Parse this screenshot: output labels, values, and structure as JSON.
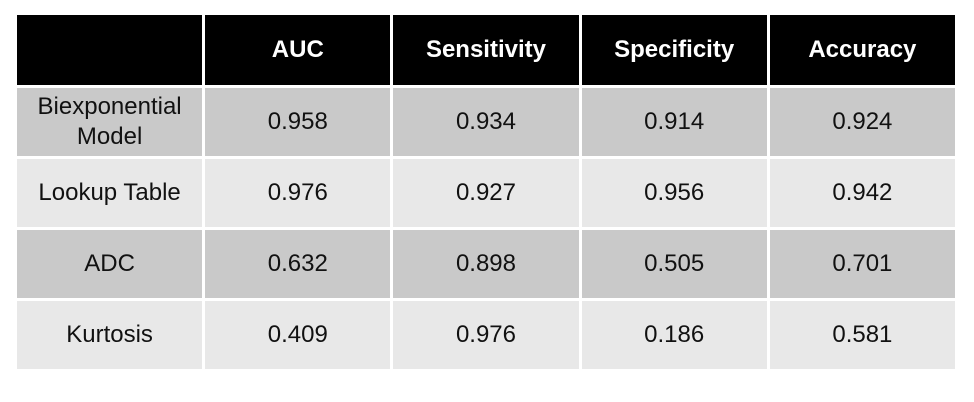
{
  "colors": {
    "header_bg": "#000000",
    "header_text": "#ffffff",
    "row_dark_bg": "#c9c9c9",
    "row_light_bg": "#e8e8e8",
    "gridline": "#ffffff",
    "body_text": "#111111"
  },
  "chart_data": {
    "type": "table",
    "title": "",
    "columns": [
      "",
      "AUC",
      "Sensitivity",
      "Specificity",
      "Accuracy"
    ],
    "rows": [
      {
        "label": "Biexponential Model",
        "values": [
          "0.958",
          "0.934",
          "0.914",
          "0.924"
        ]
      },
      {
        "label": "Lookup Table",
        "values": [
          "0.976",
          "0.927",
          "0.956",
          "0.942"
        ]
      },
      {
        "label": "ADC",
        "values": [
          "0.632",
          "0.898",
          "0.505",
          "0.701"
        ]
      },
      {
        "label": "Kurtosis",
        "values": [
          "0.409",
          "0.976",
          "0.186",
          "0.581"
        ]
      }
    ]
  }
}
